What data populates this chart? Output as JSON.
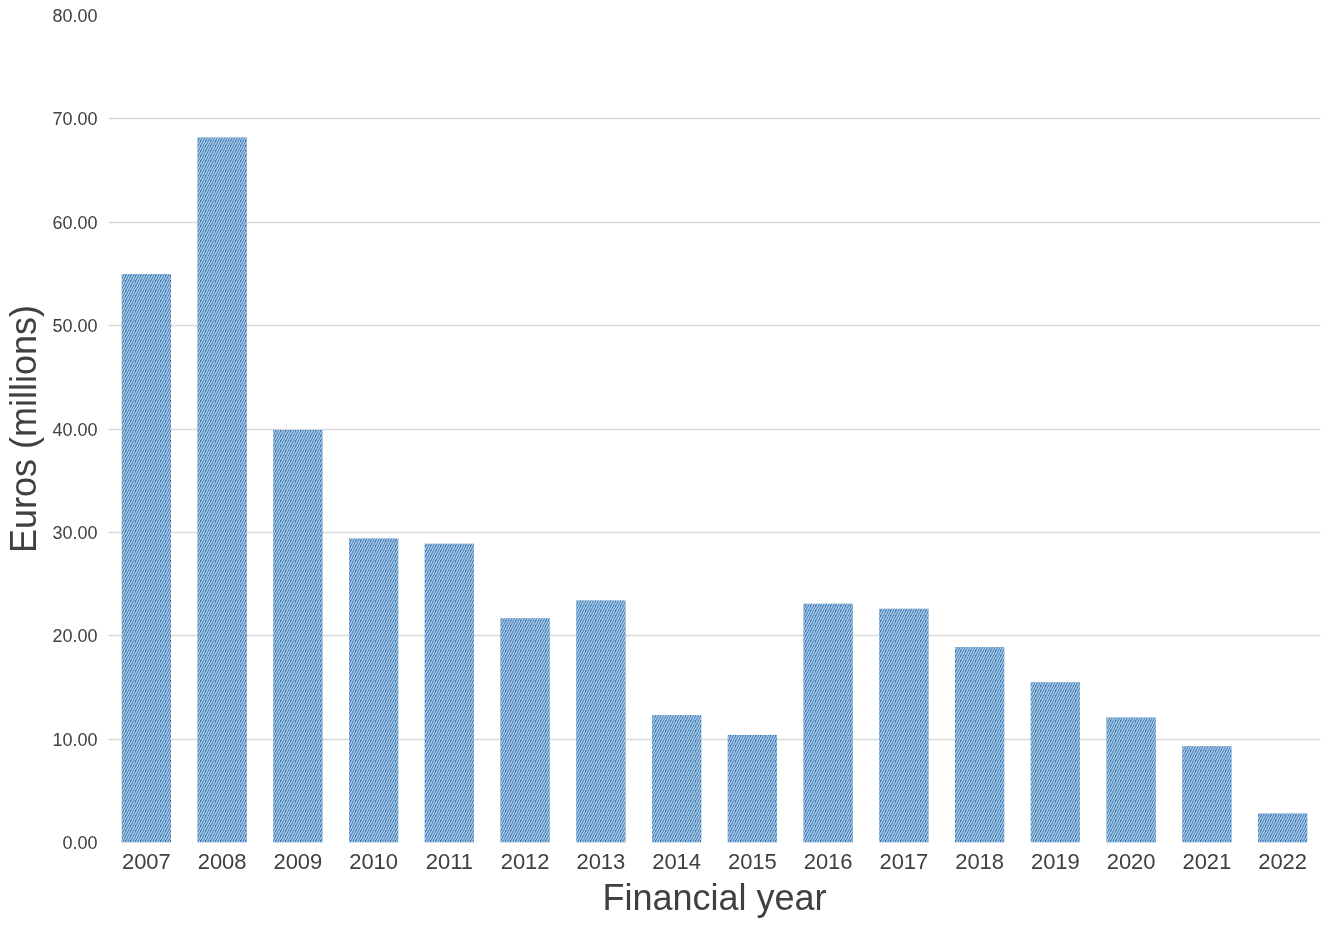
{
  "chart_data": {
    "type": "bar",
    "xlabel": "Financial year",
    "ylabel": "Euros (millions)",
    "categories": [
      "2007",
      "2008",
      "2009",
      "2010",
      "2011",
      "2012",
      "2013",
      "2014",
      "2015",
      "2016",
      "2017",
      "2018",
      "2019",
      "2020",
      "2021",
      "2022"
    ],
    "values": [
      55.0,
      68.2,
      39.9,
      29.4,
      28.9,
      21.7,
      23.4,
      12.3,
      10.4,
      23.1,
      22.6,
      18.9,
      15.5,
      12.1,
      9.3,
      2.8
    ],
    "color": "#2e75b6",
    "ylim": [
      0,
      80
    ],
    "yticks": [
      {
        "value": 0,
        "label": "0.00"
      },
      {
        "value": 10,
        "label": "10.00"
      },
      {
        "value": 20,
        "label": "20.00"
      },
      {
        "value": 30,
        "label": "30.00"
      },
      {
        "value": 40,
        "label": "40.00"
      },
      {
        "value": 50,
        "label": "50.00"
      },
      {
        "value": 60,
        "label": "60.00"
      },
      {
        "value": 70,
        "label": "70.00"
      },
      {
        "value": 80,
        "label": "80.00"
      }
    ],
    "grid": "y"
  }
}
